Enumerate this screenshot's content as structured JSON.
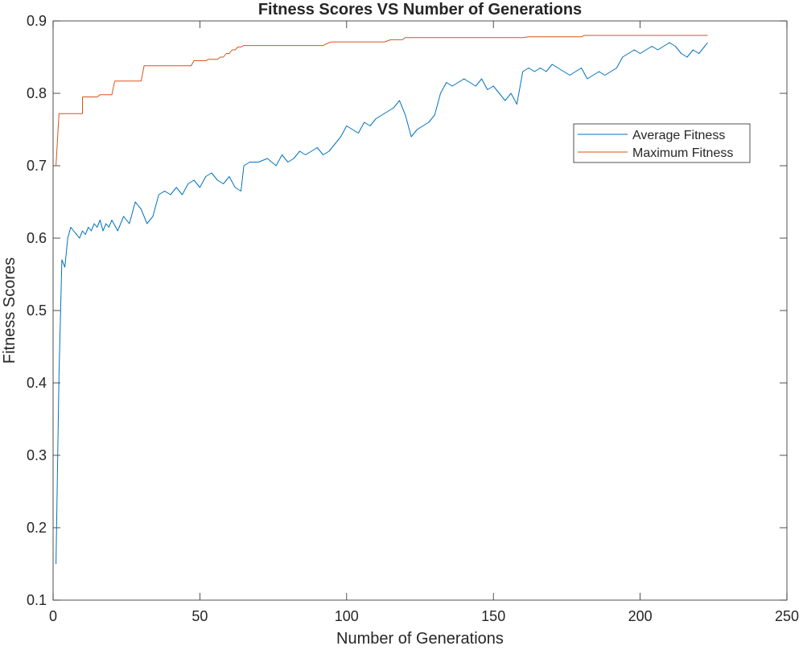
{
  "chart_data": {
    "type": "line",
    "title": "Fitness Scores VS Number of Generations",
    "xlabel": "Number of Generations",
    "ylabel": "Fitness Scores",
    "xlim": [
      0,
      250
    ],
    "ylim": [
      0.1,
      0.9
    ],
    "xticks": [
      "0",
      "50",
      "100",
      "150",
      "200",
      "250"
    ],
    "yticks": [
      "0.1",
      "0.2",
      "0.3",
      "0.4",
      "0.5",
      "0.6",
      "0.7",
      "0.8",
      "0.9"
    ],
    "grid": false,
    "legend_position": "upper-right",
    "series": [
      {
        "name": "Average Fitness",
        "color": "#0072BD",
        "x": [
          1,
          2,
          3,
          4,
          5,
          6,
          7,
          8,
          9,
          10,
          11,
          12,
          13,
          14,
          15,
          16,
          17,
          18,
          19,
          20,
          22,
          24,
          26,
          28,
          30,
          32,
          34,
          36,
          38,
          40,
          42,
          44,
          46,
          48,
          50,
          52,
          54,
          56,
          58,
          60,
          62,
          64,
          65,
          67,
          70,
          73,
          76,
          78,
          80,
          82,
          84,
          86,
          88,
          90,
          92,
          94,
          96,
          98,
          100,
          102,
          104,
          106,
          108,
          110,
          112,
          114,
          116,
          118,
          120,
          122,
          124,
          126,
          128,
          130,
          132,
          134,
          136,
          138,
          140,
          142,
          144,
          146,
          148,
          150,
          152,
          154,
          156,
          158,
          160,
          162,
          164,
          166,
          168,
          170,
          172,
          174,
          176,
          178,
          180,
          182,
          184,
          186,
          188,
          190,
          192,
          194,
          196,
          198,
          200,
          202,
          204,
          206,
          208,
          210,
          212,
          214,
          216,
          218,
          220,
          222,
          223
        ],
        "y": [
          0.15,
          0.41,
          0.57,
          0.56,
          0.6,
          0.615,
          0.61,
          0.605,
          0.6,
          0.61,
          0.605,
          0.615,
          0.61,
          0.62,
          0.615,
          0.625,
          0.61,
          0.62,
          0.615,
          0.625,
          0.61,
          0.63,
          0.62,
          0.65,
          0.64,
          0.62,
          0.63,
          0.66,
          0.665,
          0.66,
          0.67,
          0.66,
          0.675,
          0.68,
          0.67,
          0.685,
          0.69,
          0.68,
          0.675,
          0.685,
          0.67,
          0.665,
          0.7,
          0.705,
          0.705,
          0.71,
          0.7,
          0.715,
          0.705,
          0.71,
          0.72,
          0.715,
          0.72,
          0.725,
          0.715,
          0.72,
          0.73,
          0.74,
          0.755,
          0.75,
          0.745,
          0.76,
          0.755,
          0.765,
          0.77,
          0.775,
          0.78,
          0.79,
          0.77,
          0.74,
          0.75,
          0.755,
          0.76,
          0.77,
          0.8,
          0.815,
          0.81,
          0.815,
          0.82,
          0.815,
          0.81,
          0.82,
          0.805,
          0.81,
          0.8,
          0.79,
          0.8,
          0.785,
          0.83,
          0.835,
          0.83,
          0.835,
          0.83,
          0.84,
          0.835,
          0.83,
          0.825,
          0.83,
          0.835,
          0.82,
          0.825,
          0.83,
          0.825,
          0.83,
          0.835,
          0.85,
          0.855,
          0.86,
          0.855,
          0.86,
          0.865,
          0.86,
          0.865,
          0.87,
          0.865,
          0.855,
          0.85,
          0.86,
          0.855,
          0.865,
          0.87
        ]
      },
      {
        "name": "Maximum Fitness",
        "color": "#D95319",
        "x": [
          1,
          2,
          10,
          10,
          15,
          16,
          20,
          21,
          30,
          31,
          47,
          48,
          52,
          53,
          56,
          57,
          58,
          59,
          60,
          61,
          62,
          63,
          64,
          65,
          92,
          94,
          95,
          113,
          115,
          119,
          120,
          160,
          162,
          180,
          181,
          223
        ],
        "y": [
          0.7,
          0.772,
          0.772,
          0.795,
          0.795,
          0.798,
          0.798,
          0.817,
          0.817,
          0.838,
          0.838,
          0.845,
          0.845,
          0.847,
          0.847,
          0.85,
          0.85,
          0.855,
          0.855,
          0.86,
          0.86,
          0.864,
          0.864,
          0.866,
          0.866,
          0.87,
          0.871,
          0.871,
          0.874,
          0.874,
          0.877,
          0.877,
          0.878,
          0.878,
          0.88,
          0.88
        ]
      }
    ]
  }
}
